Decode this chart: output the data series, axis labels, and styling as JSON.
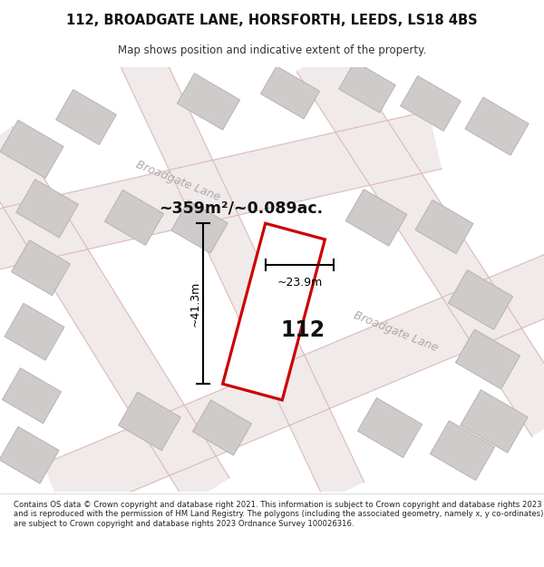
{
  "title_line1": "112, BROADGATE LANE, HORSFORTH, LEEDS, LS18 4BS",
  "title_line2": "Map shows position and indicative extent of the property.",
  "area_text": "~359m²/~0.089ac.",
  "number_label": "112",
  "dim_height": "~41.3m",
  "dim_width": "~23.9m",
  "road_label_upper": "Broadgate Lane",
  "road_label_lower": "Broadgate Lane",
  "footer_text": "Contains OS data © Crown copyright and database right 2021. This information is subject to Crown copyright and database rights 2023 and is reproduced with the permission of HM Land Registry. The polygons (including the associated geometry, namely x, y co-ordinates) are subject to Crown copyright and database rights 2023 Ordnance Survey 100026316.",
  "map_bg": "#ede8e8",
  "building_fill": "#d0cbcb",
  "building_stroke": "#b8b2b2",
  "subject_fill": "#ffffff",
  "subject_stroke": "#cc0000",
  "road_fill": "#f0eaea",
  "road_line": "#e0b8b8",
  "dim_color": "#000000",
  "road_label_color": "#b0a8a8",
  "title_color": "#111111",
  "subtitle_color": "#333333",
  "footer_color": "#222222",
  "area_text_color": "#111111"
}
